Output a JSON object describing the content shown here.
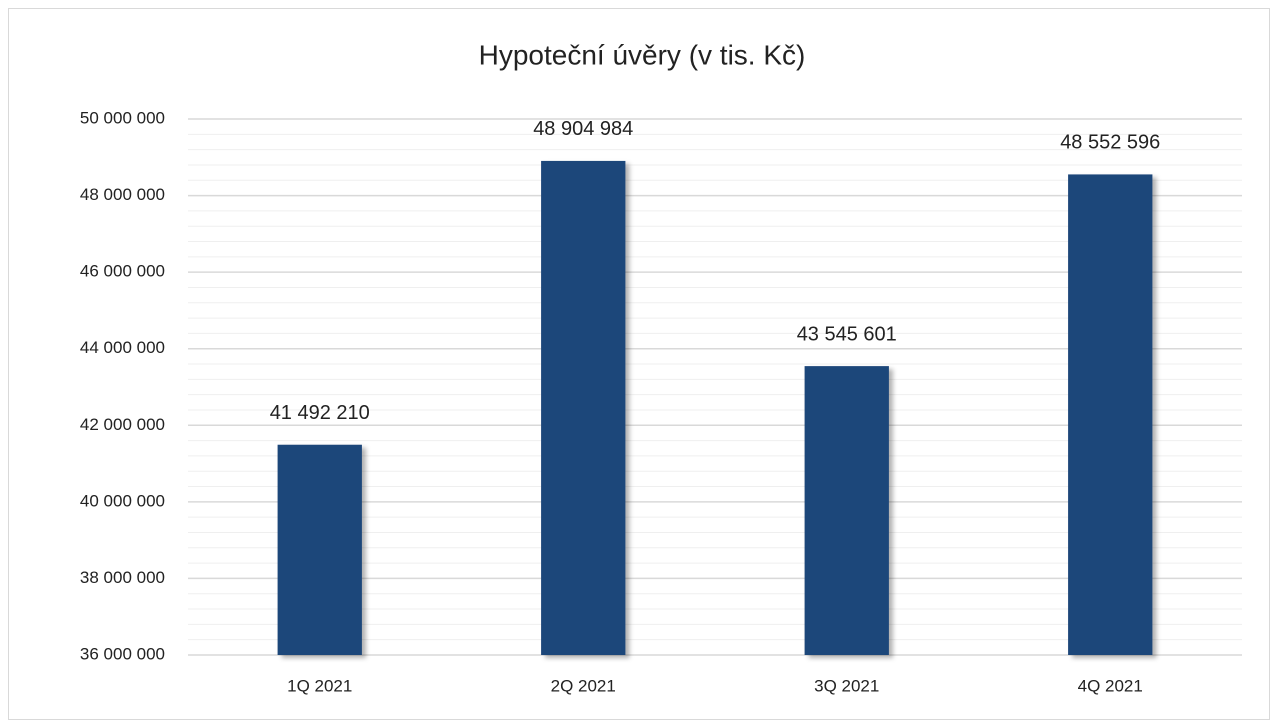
{
  "chart_data": {
    "type": "bar",
    "title": "Hypoteční úvěry (v tis. Kč)",
    "categories": [
      "1Q 2021",
      "2Q 2021",
      "3Q 2021",
      "4Q 2021"
    ],
    "values": [
      41492210,
      48904984,
      43545601,
      48552596
    ],
    "value_labels": [
      "41 492 210",
      "48 904 984",
      "43 545 601",
      "48 552 596"
    ],
    "color": "#1f477a",
    "ylim": [
      36000000,
      50000000
    ],
    "yticks": [
      {
        "value": 36000000,
        "label": "36 000 000"
      },
      {
        "value": 38000000,
        "label": "38 000 000"
      },
      {
        "value": 40000000,
        "label": "40 000 000"
      },
      {
        "value": 42000000,
        "label": "42 000 000"
      },
      {
        "value": 44000000,
        "label": "44 000 000"
      },
      {
        "value": 46000000,
        "label": "46 000 000"
      },
      {
        "value": 48000000,
        "label": "48 000 000"
      },
      {
        "value": 50000000,
        "label": "50 000 000"
      }
    ],
    "grid": true
  }
}
